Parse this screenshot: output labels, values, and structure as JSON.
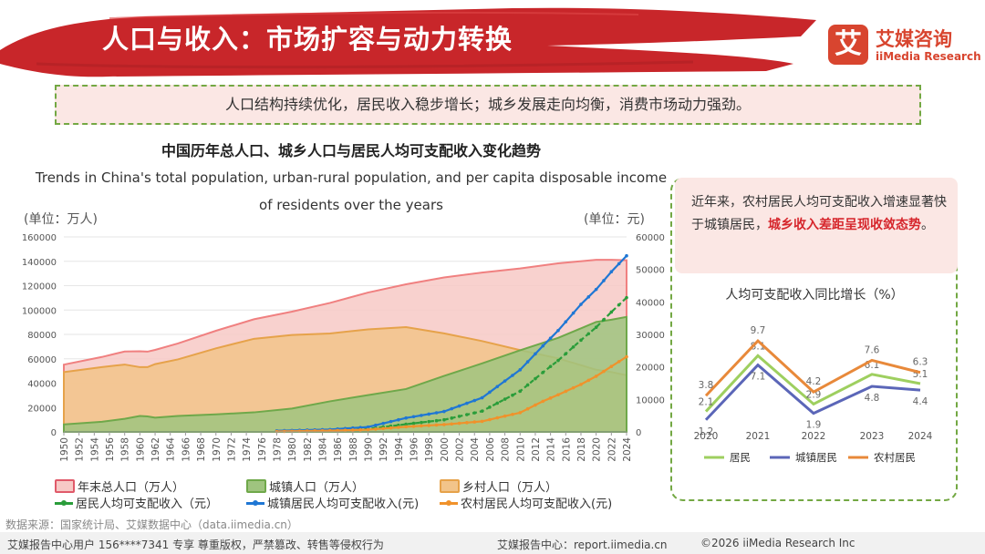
{
  "header": {
    "title": "人口与收入：市场扩容与动力转换",
    "logo_mark": "艾",
    "logo_cn": "艾媒咨询",
    "logo_en": "iiMedia Research",
    "brand_color": "#d8452f"
  },
  "banner": "人口结构持续优化，居民收入稳步增长；城乡发展走向均衡，消费市场动力强劲。",
  "unit_left": "(单位：万人)",
  "unit_right": "(单位：元)",
  "note": {
    "text_before": "近年来，农村居民人均可支配收入增速显著快于城镇居民，",
    "highlight": "城乡收入差距呈现收敛态势",
    "text_after": "。"
  },
  "source": "数据来源：国家统计局、艾媒数据中心（data.iimedia.cn）",
  "footer": {
    "left": "艾媒报告中心用户 156****7341 专享 尊重版权，严禁篡改、转售等侵权行为",
    "mid": "艾媒报告中心：report.iimedia.cn",
    "right": "©2026  iiMedia Research  Inc"
  },
  "chart_data": [
    {
      "type": "area",
      "title": "中国历年总人口、城乡人口与居民人均可支配收入变化趋势",
      "subtitle": "Trends in China's total population, urban-rural population, and per capita disposable income of residents over the years",
      "ylabel_left": "(单位：万人)",
      "ylabel_right": "(单位：元)",
      "ylim_left": [
        0,
        160000
      ],
      "ylim_right": [
        0,
        60000
      ],
      "yticks_left": [
        0,
        20000,
        40000,
        60000,
        80000,
        100000,
        120000,
        140000,
        160000
      ],
      "yticks_right": [
        0,
        10000,
        20000,
        30000,
        40000,
        50000,
        60000
      ],
      "x_ticks": [
        1950,
        1952,
        1954,
        1956,
        1958,
        1960,
        1962,
        1964,
        1966,
        1968,
        1970,
        1972,
        1974,
        1976,
        1978,
        1980,
        1982,
        1984,
        1986,
        1988,
        1990,
        1992,
        1994,
        1996,
        1998,
        2000,
        2002,
        2004,
        2006,
        2008,
        2010,
        2012,
        2014,
        2016,
        2018,
        2020,
        2022,
        2024
      ],
      "population_series": [
        {
          "name": "年末总人口（万人）",
          "axis": "left",
          "color": "#f08080",
          "fill": "#f7c9c6",
          "x": [
            1950,
            1955,
            1958,
            1960,
            1961,
            1962,
            1965,
            1970,
            1975,
            1980,
            1985,
            1990,
            1995,
            2000,
            2005,
            2010,
            2015,
            2020,
            2022,
            2024
          ],
          "values": [
            55196,
            61465,
            65994,
            66207,
            65859,
            67295,
            72538,
            82992,
            92420,
            98705,
            105851,
            114333,
            121121,
            126743,
            130756,
            134091,
            138326,
            141212,
            141175,
            140828
          ]
        },
        {
          "name": "乡村人口（万人）",
          "axis": "left",
          "color": "#e6a24a",
          "fill": "#f2c48a",
          "x": [
            1950,
            1955,
            1958,
            1960,
            1961,
            1962,
            1965,
            1970,
            1975,
            1980,
            1985,
            1990,
            1995,
            2000,
            2005,
            2010,
            2015,
            2020,
            2022,
            2024
          ],
          "values": [
            49027,
            53180,
            55273,
            53134,
            53152,
            55636,
            59493,
            68568,
            76390,
            79565,
            80757,
            84138,
            85947,
            80837,
            74544,
            67113,
            60346,
            50992,
            49104,
            46478
          ]
        },
        {
          "name": "城镇人口（万人）",
          "axis": "left",
          "color": "#6fa84a",
          "fill": "#9fc47f",
          "x": [
            1950,
            1955,
            1958,
            1960,
            1961,
            1962,
            1965,
            1970,
            1975,
            1980,
            1985,
            1990,
            1995,
            2000,
            2005,
            2010,
            2015,
            2020,
            2022,
            2024
          ],
          "values": [
            6169,
            8285,
            10721,
            13073,
            12707,
            11659,
            13045,
            14424,
            16030,
            19140,
            25094,
            30195,
            35174,
            45906,
            56212,
            66978,
            77116,
            90220,
            92071,
            94350
          ]
        }
      ],
      "income_series": [
        {
          "name": "居民人均可支配收入（元）",
          "axis": "right",
          "color": "#2a9d3a",
          "style": "dashed",
          "x": [
            1978,
            1985,
            1990,
            1995,
            2000,
            2005,
            2010,
            2013,
            2015,
            2018,
            2020,
            2022,
            2024
          ],
          "values": [
            171,
            478,
            904,
            2363,
            3721,
            6385,
            12520,
            18311,
            21966,
            28228,
            32189,
            36883,
            41314
          ]
        },
        {
          "name": "城镇居民人均可支配收入(元)",
          "axis": "right",
          "color": "#1f77d4",
          "style": "solid",
          "x": [
            1978,
            1985,
            1990,
            1995,
            2000,
            2005,
            2010,
            2013,
            2015,
            2018,
            2020,
            2022,
            2024
          ],
          "values": [
            343,
            739,
            1510,
            4283,
            6280,
            10493,
            19109,
            26467,
            31195,
            39251,
            43834,
            49283,
            54188
          ]
        },
        {
          "name": "农村居民人均可支配收入(元)",
          "axis": "right",
          "color": "#f0922b",
          "style": "solid",
          "x": [
            1978,
            1985,
            1990,
            1995,
            2000,
            2005,
            2010,
            2013,
            2015,
            2018,
            2020,
            2022,
            2024
          ],
          "values": [
            134,
            398,
            686,
            1578,
            2253,
            3255,
            5919,
            9430,
            11422,
            14617,
            17131,
            20133,
            23119
          ]
        }
      ]
    },
    {
      "type": "line",
      "title": "人均可支配收入同比增长（%）",
      "categories": [
        "2020",
        "2021",
        "2022",
        "2023",
        "2024"
      ],
      "series": [
        {
          "name": "居民",
          "color": "#9ecf5f",
          "values": [
            2.1,
            8.1,
            2.9,
            6.1,
            5.1
          ]
        },
        {
          "name": "城镇居民",
          "color": "#5b66b8",
          "values": [
            1.2,
            7.1,
            1.9,
            4.8,
            4.4
          ]
        },
        {
          "name": "农村居民",
          "color": "#e8893a",
          "values": [
            3.8,
            9.7,
            4.2,
            7.6,
            6.3
          ]
        }
      ]
    }
  ]
}
